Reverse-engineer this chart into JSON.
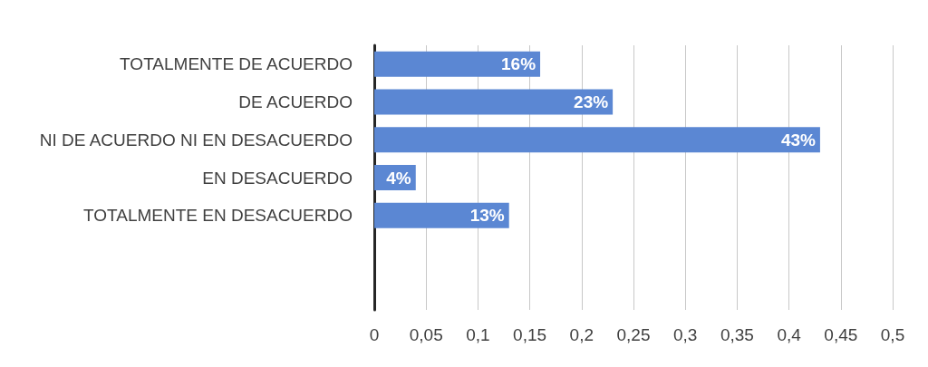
{
  "chart_data": {
    "type": "bar",
    "orientation": "horizontal",
    "categories": [
      "TOTALMENTE DE ACUERDO",
      "DE ACUERDO",
      "NI DE ACUERDO NI EN DESACUERDO",
      "EN DESACUERDO",
      "TOTALMENTE EN DESACUERDO",
      null,
      null
    ],
    "values": [
      0.16,
      0.23,
      0.43,
      0.04,
      0.13,
      null,
      null
    ],
    "value_labels": [
      "16%",
      "23%",
      "43%",
      "4%",
      "13%",
      null,
      null
    ],
    "color": "#5b87d3",
    "xlim": [
      0,
      0.5
    ],
    "xticks": [
      {
        "value": 0,
        "label": "0"
      },
      {
        "value": 0.05,
        "label": "0,05"
      },
      {
        "value": 0.1,
        "label": "0,1"
      },
      {
        "value": 0.15,
        "label": "0,15"
      },
      {
        "value": 0.2,
        "label": "0,2"
      },
      {
        "value": 0.25,
        "label": "0,25"
      },
      {
        "value": 0.3,
        "label": "0,3"
      },
      {
        "value": 0.35,
        "label": "0,35"
      },
      {
        "value": 0.4,
        "label": "0,4"
      },
      {
        "value": 0.45,
        "label": "0,45"
      },
      {
        "value": 0.5,
        "label": "0,5"
      }
    ],
    "grid": "x"
  }
}
